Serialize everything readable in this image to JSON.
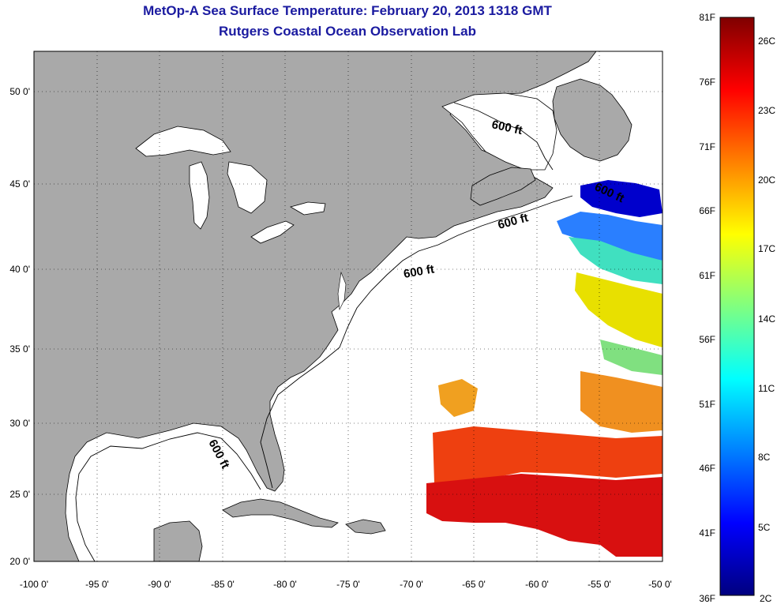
{
  "header": {
    "title": "MetOp-A Sea Surface Temperature:  February 20, 2013 1318 GMT",
    "subtitle": "Rutgers Coastal Ocean Observation Lab"
  },
  "map": {
    "lon_range": [
      -100,
      -50
    ],
    "lat_range": [
      20,
      52.5
    ],
    "lon_ticks": [
      "-100 0'",
      "-95 0'",
      "-90 0'",
      "-85 0'",
      "-80 0'",
      "-75 0'",
      "-70 0'",
      "-65 0'",
      "-60 0'",
      "-55 0'",
      "-50 0'"
    ],
    "lat_ticks": [
      "20 0'",
      "25 0'",
      "30 0'",
      "35 0'",
      "40 0'",
      "45 0'",
      "50 0'"
    ],
    "contour_labels": [
      "600 ft",
      "600 ft",
      "600 ft",
      "600 ft",
      "600 ft"
    ],
    "land_color": "#a9a9a9",
    "ocean_color": "#ffffff"
  },
  "colorbar": {
    "fahrenheit": [
      "81F",
      "76F",
      "71F",
      "66F",
      "61F",
      "56F",
      "51F",
      "46F",
      "41F",
      "36F"
    ],
    "celsius": [
      "26C",
      "23C",
      "20C",
      "17C",
      "14C",
      "11C",
      "8C",
      "5C",
      "2C"
    ],
    "range_c": [
      2,
      27.2
    ],
    "gradient": [
      "#00007f",
      "#0000ff",
      "#0080ff",
      "#00ffff",
      "#80ff80",
      "#ffff00",
      "#ff8000",
      "#ff0000",
      "#7f0000"
    ]
  }
}
